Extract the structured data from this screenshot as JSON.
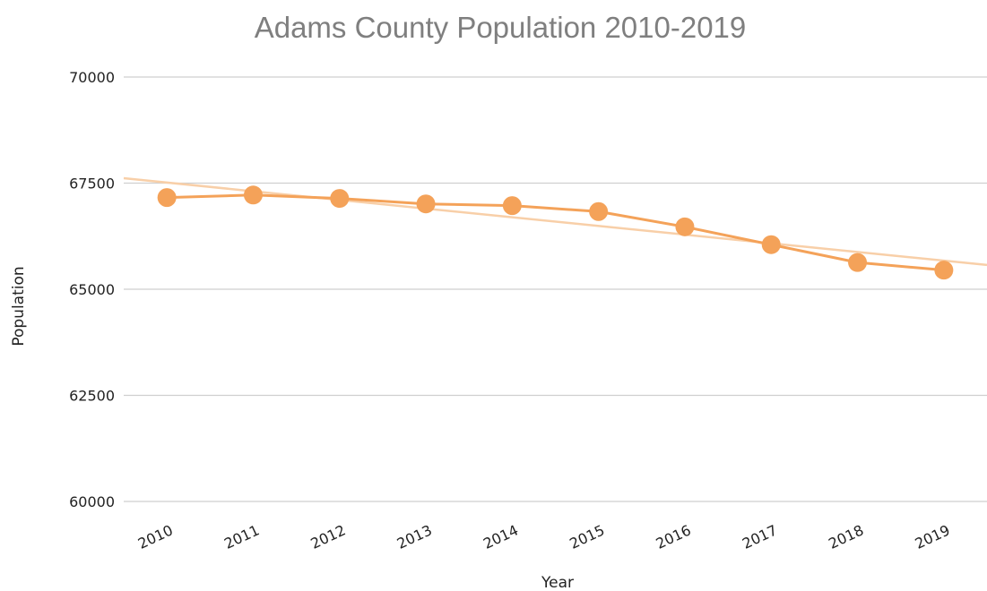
{
  "chart_data": {
    "type": "line",
    "title": "Adams County Population 2010-2019",
    "xlabel": "Year",
    "ylabel": "Population",
    "categories": [
      "2010",
      "2011",
      "2012",
      "2013",
      "2014",
      "2015",
      "2016",
      "2017",
      "2018",
      "2019"
    ],
    "series": [
      {
        "values": [
          67160,
          67220,
          67140,
          67010,
          66970,
          66830,
          66470,
          66050,
          65630,
          65450
        ],
        "color": "#f4a259"
      }
    ],
    "trendline": {
      "type": "linear",
      "color": "#f8cfa8"
    },
    "ylim": [
      60000,
      70000
    ],
    "yticks": [
      60000,
      62500,
      65000,
      67500,
      70000
    ],
    "grid": true,
    "legend": "none"
  }
}
